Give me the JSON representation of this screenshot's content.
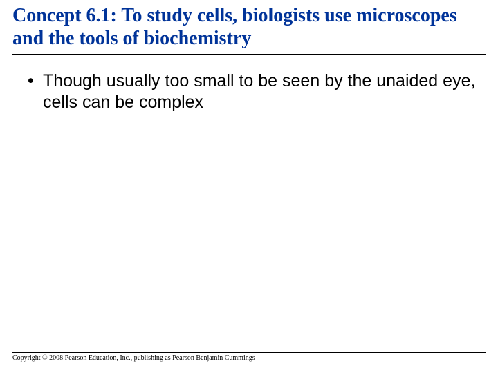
{
  "title": "Concept 6.1: To study cells, biologists use microscopes and the tools of biochemistry",
  "title_color": "#003399",
  "title_fontsize": 28,
  "title_font": "Times New Roman, serif",
  "title_weight": "bold",
  "title_rule_color": "#000000",
  "title_rule_width": 2,
  "bullets": [
    "Though usually too small to be seen by the unaided eye, cells can be complex"
  ],
  "bullet_color": "#000000",
  "bullet_fontsize": 25,
  "bullet_font": "Arial, sans-serif",
  "bullet_symbol": "•",
  "footer_rule_color": "#000000",
  "footer_rule_width": 1,
  "copyright": "Copyright © 2008 Pearson Education, Inc., publishing as Pearson Benjamin Cummings",
  "copyright_fontsize": 10,
  "background_color": "#ffffff",
  "slide_width": 720,
  "slide_height": 540
}
